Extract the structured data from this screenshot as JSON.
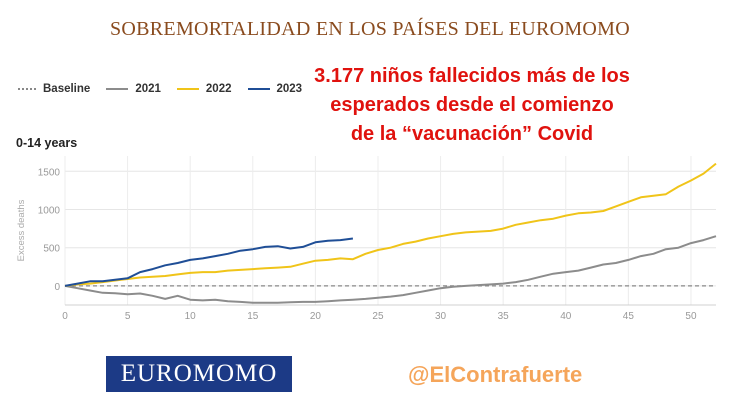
{
  "title": "SOBREMORTALIDAD EN LOS PAÍSES DEL EUROMOMO",
  "headline": [
    "3.177 niños fallecidos más de los",
    "esperados desde el comienzo",
    "de la “vacunación” Covid"
  ],
  "logo_text": "EUROMOMO",
  "handle": "@ElContrafuerte",
  "chart_data": {
    "type": "line",
    "panel_title": "0-14 years",
    "ylabel": "Excess deaths",
    "xlabel": "",
    "xlim": [
      0,
      52
    ],
    "ylim": [
      -250,
      1700
    ],
    "x_ticks": [
      "0",
      "5",
      "10",
      "15",
      "20",
      "25",
      "30",
      "35",
      "40",
      "45",
      "50"
    ],
    "y_ticks": [
      "0",
      "500",
      "1000",
      "1500"
    ],
    "grid": true,
    "legend_position": "top-left",
    "baseline": {
      "name": "Baseline",
      "value": 0,
      "color": "#888888"
    },
    "series": [
      {
        "name": "2021",
        "color": "#8c8c8c",
        "x": [
          0,
          1,
          2,
          3,
          4,
          5,
          6,
          7,
          8,
          9,
          10,
          11,
          12,
          13,
          14,
          15,
          16,
          17,
          18,
          19,
          20,
          21,
          22,
          23,
          24,
          25,
          26,
          27,
          28,
          29,
          30,
          31,
          32,
          33,
          34,
          35,
          36,
          37,
          38,
          39,
          40,
          41,
          42,
          43,
          44,
          45,
          46,
          47,
          48,
          49,
          50,
          51,
          52
        ],
        "values": [
          0,
          -30,
          -60,
          -90,
          -95,
          -110,
          -100,
          -130,
          -170,
          -130,
          -180,
          -190,
          -180,
          -200,
          -210,
          -220,
          -220,
          -220,
          -215,
          -210,
          -210,
          -200,
          -190,
          -180,
          -170,
          -155,
          -140,
          -120,
          -90,
          -60,
          -30,
          -10,
          0,
          10,
          20,
          30,
          50,
          80,
          120,
          160,
          180,
          200,
          240,
          280,
          300,
          340,
          390,
          420,
          480,
          500,
          560,
          600,
          650
        ]
      },
      {
        "name": "2022",
        "color": "#f0c419",
        "x": [
          0,
          1,
          2,
          3,
          4,
          5,
          6,
          7,
          8,
          9,
          10,
          11,
          12,
          13,
          14,
          15,
          16,
          17,
          18,
          19,
          20,
          21,
          22,
          23,
          24,
          25,
          26,
          27,
          28,
          29,
          30,
          31,
          32,
          33,
          34,
          35,
          36,
          37,
          38,
          39,
          40,
          41,
          42,
          43,
          44,
          45,
          46,
          47,
          48,
          49,
          50,
          51,
          52
        ],
        "values": [
          0,
          20,
          30,
          50,
          70,
          90,
          110,
          120,
          130,
          150,
          170,
          180,
          180,
          200,
          210,
          220,
          230,
          240,
          250,
          290,
          330,
          340,
          360,
          350,
          420,
          470,
          500,
          550,
          580,
          620,
          650,
          680,
          700,
          710,
          720,
          750,
          800,
          830,
          860,
          880,
          920,
          950,
          960,
          980,
          1040,
          1100,
          1160,
          1180,
          1200,
          1300,
          1380,
          1470,
          1600
        ]
      },
      {
        "name": "2023",
        "color": "#1f4e96",
        "x": [
          0,
          1,
          2,
          3,
          4,
          5,
          6,
          7,
          8,
          9,
          10,
          11,
          12,
          13,
          14,
          15,
          16,
          17,
          18,
          19,
          20,
          21,
          22,
          23
        ],
        "values": [
          0,
          30,
          60,
          60,
          80,
          100,
          180,
          220,
          270,
          300,
          340,
          360,
          390,
          420,
          460,
          480,
          510,
          520,
          490,
          510,
          570,
          590,
          600,
          620
        ]
      }
    ]
  }
}
